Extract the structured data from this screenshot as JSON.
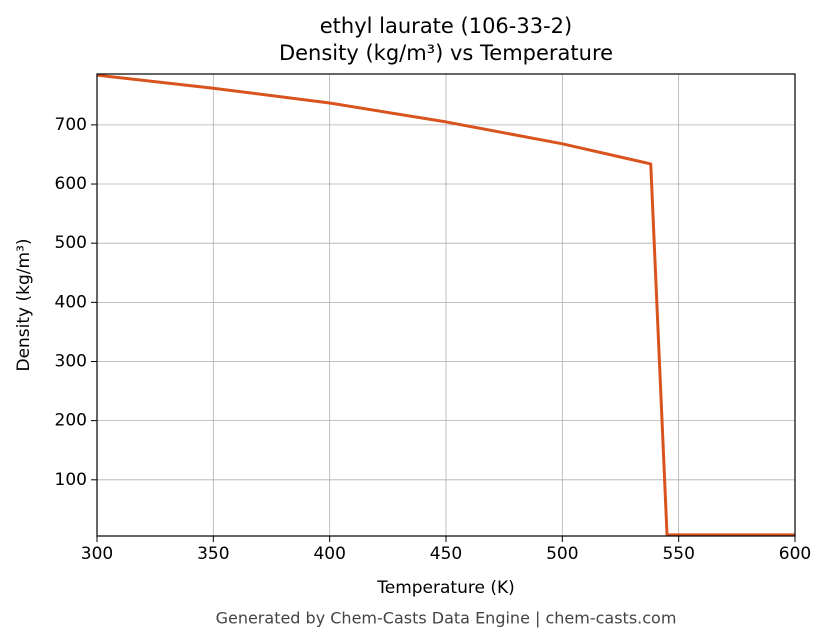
{
  "chart_data": {
    "type": "line",
    "title": "ethyl laurate (106-33-2)",
    "subtitle": "Density (kg/m³) vs Temperature",
    "x_label": "Temperature (K)",
    "y_label": "Density (kg/m³)",
    "footer": "Generated by Chem-Casts Data Engine | chem-casts.com",
    "x": [
      300,
      350,
      400,
      450,
      500,
      538,
      545,
      600
    ],
    "series": [
      {
        "name": "Density",
        "color": "#d9531e",
        "values": [
          784,
          762,
          737,
          705,
          668,
          634,
          7,
          7
        ]
      }
    ],
    "xlim": [
      300,
      600
    ],
    "xticks": [
      300,
      350,
      400,
      450,
      500,
      550,
      600
    ],
    "ylim": [
      5,
      786
    ],
    "yticks": [
      100,
      200,
      300,
      400,
      500,
      600,
      700
    ],
    "grid": true
  }
}
